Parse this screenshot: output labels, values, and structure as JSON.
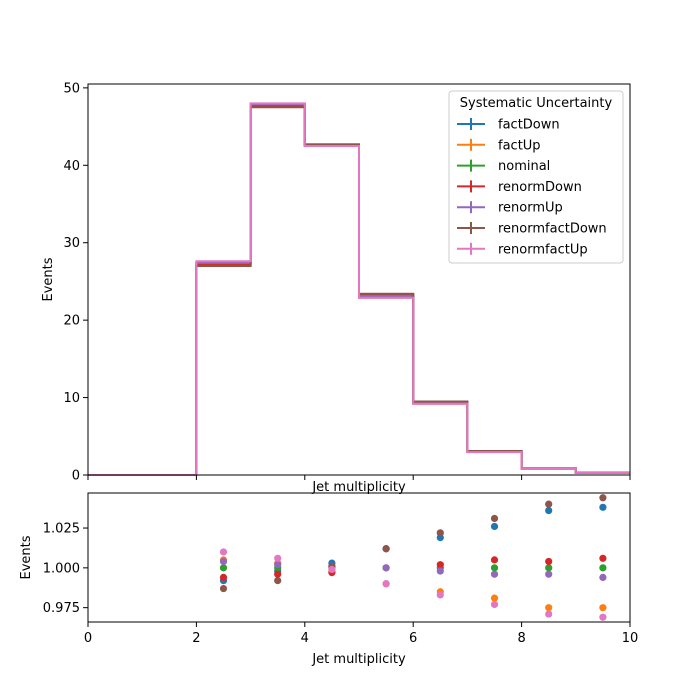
{
  "chart_data": [
    {
      "type": "line",
      "drawstyle": "steps",
      "xlabel": "Jet multiplicity",
      "ylabel": "Events",
      "xlim": [
        0,
        10
      ],
      "ylim": [
        0,
        50.5
      ],
      "yticks": [
        0,
        10,
        20,
        30,
        40,
        50
      ],
      "grid": false,
      "legend": {
        "title": "Systematic Uncertainty",
        "placement": "top-right"
      },
      "bin_edges": [
        0,
        1,
        2,
        3,
        4,
        5,
        6,
        7,
        8,
        9,
        10
      ],
      "series": [
        {
          "name": "factDown",
          "color": "#1f77b4",
          "values": [
            0,
            0,
            27.3,
            47.7,
            42.7,
            23.3,
            9.5,
            3.1,
            0.85,
            0.3
          ]
        },
        {
          "name": "factUp",
          "color": "#ff7f0e",
          "values": [
            0,
            0,
            27.5,
            47.9,
            42.5,
            22.9,
            9.2,
            3.0,
            0.8,
            0.28
          ]
        },
        {
          "name": "nominal",
          "color": "#2ca02c",
          "values": [
            0,
            0,
            27.3,
            47.8,
            42.6,
            23.1,
            9.3,
            3.0,
            0.82,
            0.29
          ]
        },
        {
          "name": "renormDown",
          "color": "#d62728",
          "values": [
            0,
            0,
            27.1,
            47.6,
            42.5,
            23.4,
            9.4,
            3.05,
            0.83,
            0.29
          ]
        },
        {
          "name": "renormUp",
          "color": "#9467bd",
          "values": [
            0,
            0,
            27.4,
            47.9,
            42.6,
            23.1,
            9.3,
            3.0,
            0.82,
            0.29
          ]
        },
        {
          "name": "renormfactDown",
          "color": "#8c564b",
          "values": [
            0,
            0,
            27.0,
            47.5,
            42.7,
            23.4,
            9.5,
            3.1,
            0.86,
            0.3
          ]
        },
        {
          "name": "renormfactUp",
          "color": "#e377c2",
          "values": [
            0,
            0,
            27.6,
            48.0,
            42.5,
            22.9,
            9.2,
            2.95,
            0.79,
            0.28
          ]
        }
      ]
    },
    {
      "type": "scatter",
      "xlabel": "Jet multiplicity",
      "ylabel": "Events",
      "xlim": [
        0,
        10
      ],
      "ylim": [
        0.966,
        1.047
      ],
      "xticks": [
        0,
        2,
        4,
        6,
        8,
        10
      ],
      "yticks": [
        0.975,
        1.0,
        1.025
      ],
      "ytick_labels": [
        "0.975",
        "1.000",
        "1.025"
      ],
      "grid": false,
      "x": [
        2.5,
        3.5,
        4.5,
        5.5,
        6.5,
        7.5,
        8.5,
        9.5
      ],
      "series": [
        {
          "name": "factDown",
          "color": "#1f77b4",
          "values": [
            0.992,
            0.998,
            1.003,
            1.012,
            1.019,
            1.026,
            1.036,
            1.038
          ]
        },
        {
          "name": "factUp",
          "color": "#ff7f0e",
          "values": [
            1.005,
            1.003,
            0.998,
            0.99,
            0.985,
            0.981,
            0.975,
            0.975
          ]
        },
        {
          "name": "nominal",
          "color": "#2ca02c",
          "values": [
            1.0,
            1.0,
            1.0,
            1.0,
            1.0,
            1.0,
            1.0,
            1.0
          ]
        },
        {
          "name": "renormDown",
          "color": "#d62728",
          "values": [
            0.994,
            0.996,
            0.997,
            1.012,
            1.002,
            1.005,
            1.004,
            1.006
          ]
        },
        {
          "name": "renormUp",
          "color": "#9467bd",
          "values": [
            1.004,
            1.002,
            1.001,
            1.0,
            0.998,
            0.996,
            0.996,
            0.994
          ]
        },
        {
          "name": "renormfactDown",
          "color": "#8c564b",
          "values": [
            0.987,
            0.992,
            1.001,
            1.012,
            1.022,
            1.031,
            1.04,
            1.044
          ]
        },
        {
          "name": "renormfactUp",
          "color": "#e377c2",
          "values": [
            1.01,
            1.006,
            0.999,
            0.99,
            0.983,
            0.977,
            0.971,
            0.969
          ]
        }
      ]
    }
  ]
}
